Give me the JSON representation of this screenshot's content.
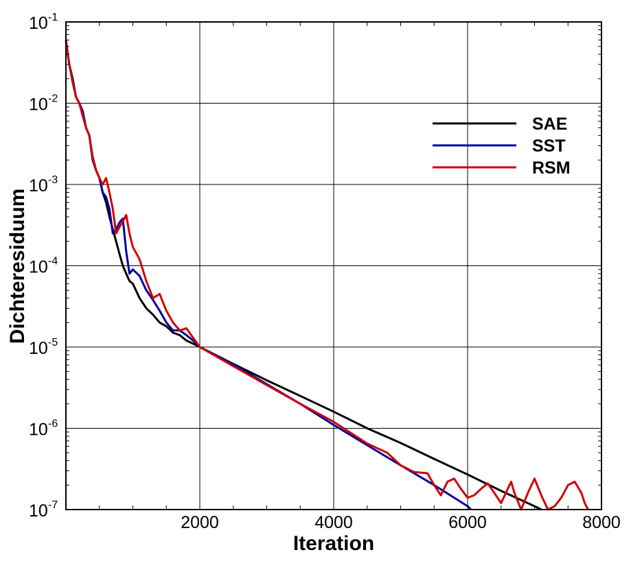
{
  "chart_data": {
    "type": "line",
    "title": "",
    "xlabel": "Iteration",
    "ylabel": "Dichteresiduum",
    "xlim": [
      0,
      8000
    ],
    "ylim": [
      1e-07,
      0.1
    ],
    "yscale": "log",
    "grid": true,
    "legend_position": "top-right",
    "x_ticks": [
      "2000",
      "4000",
      "6000",
      "8000"
    ],
    "y_ticks": [
      {
        "base": "10",
        "exp": "-1"
      },
      {
        "base": "10",
        "exp": "-2"
      },
      {
        "base": "10",
        "exp": "-3"
      },
      {
        "base": "10",
        "exp": "-4"
      },
      {
        "base": "10",
        "exp": "-5"
      },
      {
        "base": "10",
        "exp": "-6"
      },
      {
        "base": "10",
        "exp": "-7"
      }
    ],
    "series": [
      {
        "name": "SAE",
        "color": "#000000",
        "x": [
          0,
          50,
          100,
          150,
          200,
          250,
          300,
          350,
          400,
          450,
          500,
          550,
          600,
          650,
          700,
          750,
          800,
          850,
          900,
          950,
          1000,
          1100,
          1200,
          1300,
          1400,
          1500,
          1600,
          1700,
          1800,
          1900,
          2000,
          2500,
          3000,
          3500,
          4000,
          4500,
          5000,
          5500,
          6000,
          6500,
          7000,
          7100
        ],
        "y": [
          0.06,
          0.03,
          0.02,
          0.012,
          0.01,
          0.008,
          0.005,
          0.004,
          0.002,
          0.0015,
          0.0012,
          0.0008,
          0.0006,
          0.0004,
          0.00028,
          0.0002,
          0.00014,
          0.0001,
          8e-05,
          6.5e-05,
          6e-05,
          4e-05,
          3e-05,
          2.5e-05,
          2e-05,
          1.8e-05,
          1.5e-05,
          1.4e-05,
          1.2e-05,
          1.1e-05,
          1e-05,
          6.2e-06,
          3.9e-06,
          2.5e-06,
          1.6e-06,
          1e-06,
          6.6e-07,
          4.2e-07,
          2.7e-07,
          1.7e-07,
          1.1e-07,
          1e-07
        ]
      },
      {
        "name": "SST",
        "color": "#0000a0",
        "x": [
          0,
          50,
          100,
          150,
          200,
          250,
          300,
          350,
          400,
          450,
          500,
          550,
          600,
          650,
          700,
          750,
          800,
          850,
          900,
          950,
          1000,
          1100,
          1200,
          1300,
          1400,
          1500,
          1600,
          1700,
          1800,
          1900,
          2000,
          2500,
          3000,
          3500,
          4000,
          4500,
          5000,
          5500,
          6000,
          6050
        ],
        "y": [
          0.06,
          0.03,
          0.02,
          0.012,
          0.01,
          0.008,
          0.005,
          0.004,
          0.002,
          0.0015,
          0.0012,
          0.0008,
          0.0007,
          0.0005,
          0.00025,
          0.00028,
          0.00034,
          0.00038,
          0.00015,
          8e-05,
          9e-05,
          7.5e-05,
          5e-05,
          3.8e-05,
          2.8e-05,
          2e-05,
          1.6e-05,
          1.6e-05,
          1.4e-05,
          1.2e-05,
          1e-05,
          6.1e-06,
          3.5e-06,
          2e-06,
          1.1e-06,
          6.2e-07,
          3.5e-07,
          2e-07,
          1.1e-07,
          1e-07
        ]
      },
      {
        "name": "RSM",
        "color": "#d00000",
        "x": [
          0,
          50,
          100,
          150,
          200,
          250,
          300,
          350,
          400,
          450,
          500,
          550,
          600,
          650,
          700,
          750,
          800,
          850,
          900,
          950,
          1000,
          1100,
          1200,
          1300,
          1400,
          1500,
          1600,
          1700,
          1800,
          1900,
          2000,
          2500,
          3000,
          3500,
          4000,
          4500,
          4800,
          5000,
          5200,
          5400,
          5500,
          5600,
          5700,
          5800,
          5900,
          6000,
          6100,
          6200,
          6300,
          6400,
          6500,
          6600,
          6650,
          6700,
          6800,
          6900,
          7000,
          7100,
          7200,
          7300,
          7400,
          7500,
          7600,
          7700,
          7750,
          7800
        ],
        "y": [
          0.06,
          0.03,
          0.018,
          0.012,
          0.01,
          0.007,
          0.005,
          0.004,
          0.0022,
          0.0015,
          0.0012,
          0.001,
          0.0012,
          0.0008,
          0.0005,
          0.00025,
          0.0003,
          0.00035,
          0.00042,
          0.00025,
          0.00017,
          0.00012,
          6.5e-05,
          4e-05,
          4.5e-05,
          2.8e-05,
          2e-05,
          1.6e-05,
          1.7e-05,
          1.3e-05,
          1e-05,
          5.8e-06,
          3.4e-06,
          2e-06,
          1.2e-06,
          6.5e-07,
          5e-07,
          3.5e-07,
          2.9e-07,
          2.8e-07,
          2e-07,
          1.5e-07,
          2.2e-07,
          2.4e-07,
          1.8e-07,
          1.4e-07,
          1.5e-07,
          1.8e-07,
          2.1e-07,
          1.6e-07,
          1.2e-07,
          1.8e-07,
          2.2e-07,
          1.6e-07,
          1e-07,
          1.6e-07,
          2.4e-07,
          1.5e-07,
          1e-07,
          1.1e-07,
          1.4e-07,
          2e-07,
          2.2e-07,
          1.6e-07,
          1.2e-07,
          1e-07
        ]
      }
    ]
  }
}
